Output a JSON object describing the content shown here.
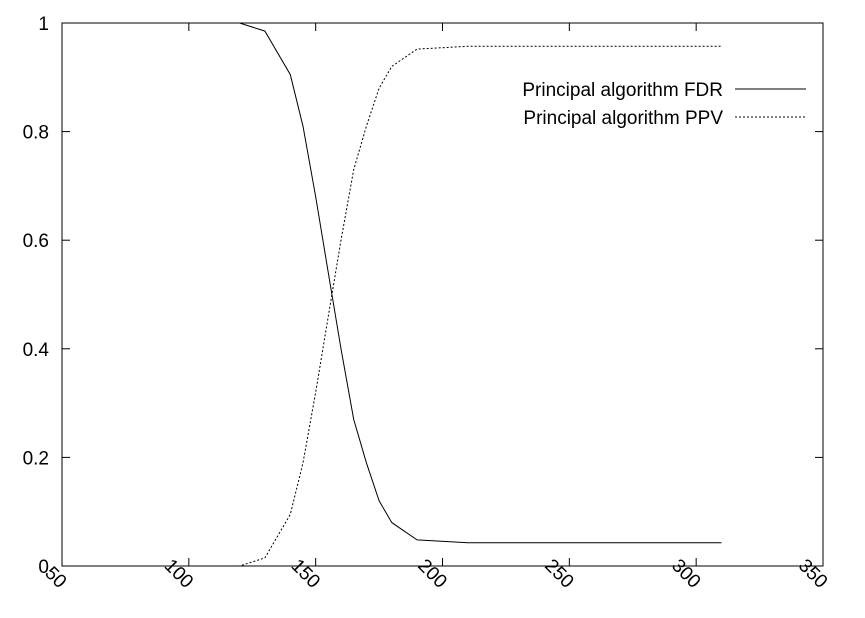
{
  "chart_data": {
    "type": "line",
    "title": "",
    "xlabel": "",
    "ylabel": "",
    "xlim": [
      50,
      350
    ],
    "ylim": [
      0,
      1
    ],
    "xticks": [
      50,
      100,
      150,
      200,
      250,
      300,
      350
    ],
    "yticks": [
      0,
      0.2,
      0.4,
      0.6,
      0.8,
      1
    ],
    "xtick_labels": [
      "50",
      "100",
      "150",
      "200",
      "250",
      "300",
      "350"
    ],
    "ytick_labels": [
      "0",
      "0.2",
      "0.4",
      "0.6",
      "0.8",
      "1"
    ],
    "grid": false,
    "legend_position": "top-right",
    "series": [
      {
        "name": "Principal algorithm FDR",
        "style": "solid",
        "color": "#000000",
        "x": [
          50,
          100,
          120,
          130,
          140,
          145,
          150,
          155,
          160,
          165,
          170,
          175,
          180,
          190,
          210,
          250,
          310
        ],
        "y": [
          1,
          1,
          1,
          0.985,
          0.905,
          0.81,
          0.68,
          0.54,
          0.4,
          0.27,
          0.19,
          0.12,
          0.08,
          0.048,
          0.043,
          0.043,
          0.043
        ]
      },
      {
        "name": "Principal algorithm PPV",
        "style": "dotted",
        "color": "#000000",
        "x": [
          50,
          100,
          120,
          130,
          140,
          145,
          150,
          155,
          160,
          165,
          170,
          175,
          180,
          190,
          210,
          250,
          310
        ],
        "y": [
          0,
          0,
          0,
          0.015,
          0.095,
          0.19,
          0.32,
          0.46,
          0.6,
          0.73,
          0.81,
          0.88,
          0.92,
          0.952,
          0.957,
          0.957,
          0.957
        ]
      }
    ]
  }
}
